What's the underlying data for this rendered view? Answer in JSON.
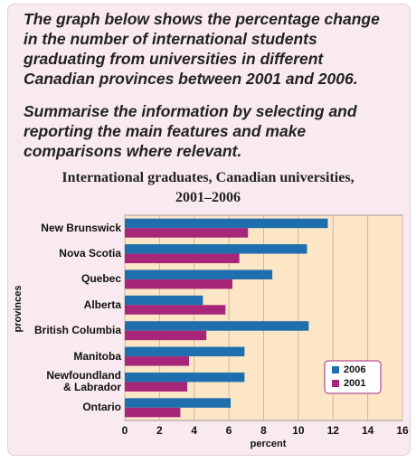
{
  "instructions": [
    "The graph below shows the percentage change in the number of international students graduating from universities in different Canadian provinces between 2001 and 2006.",
    "Summarise the information by selecting and reporting the main features and make comparisons where relevant."
  ],
  "chart_data": {
    "type": "hbar",
    "title": "International graduates, Canadian universities, 2001–2006",
    "x_label": "percent",
    "y_label": "provinces",
    "categories": [
      "New Brunswick",
      "Nova Scotia",
      "Quebec",
      "Alberta",
      "British Columbia",
      "Manitoba",
      "Newfoundland\n& Labrador",
      "Ontario"
    ],
    "series": [
      {
        "name": "2006",
        "color": "#1f6fae",
        "values": [
          11.7,
          10.5,
          8.5,
          4.5,
          10.6,
          6.9,
          6.9,
          6.1
        ]
      },
      {
        "name": "2001",
        "color": "#a7267a",
        "values": [
          7.1,
          6.6,
          6.2,
          5.8,
          4.7,
          3.7,
          3.6,
          3.2
        ]
      }
    ],
    "xlim": [
      0,
      16
    ],
    "xticks": [
      0,
      2,
      4,
      6,
      8,
      10,
      12,
      14,
      16
    ],
    "grid": true,
    "legend": "lower right"
  }
}
